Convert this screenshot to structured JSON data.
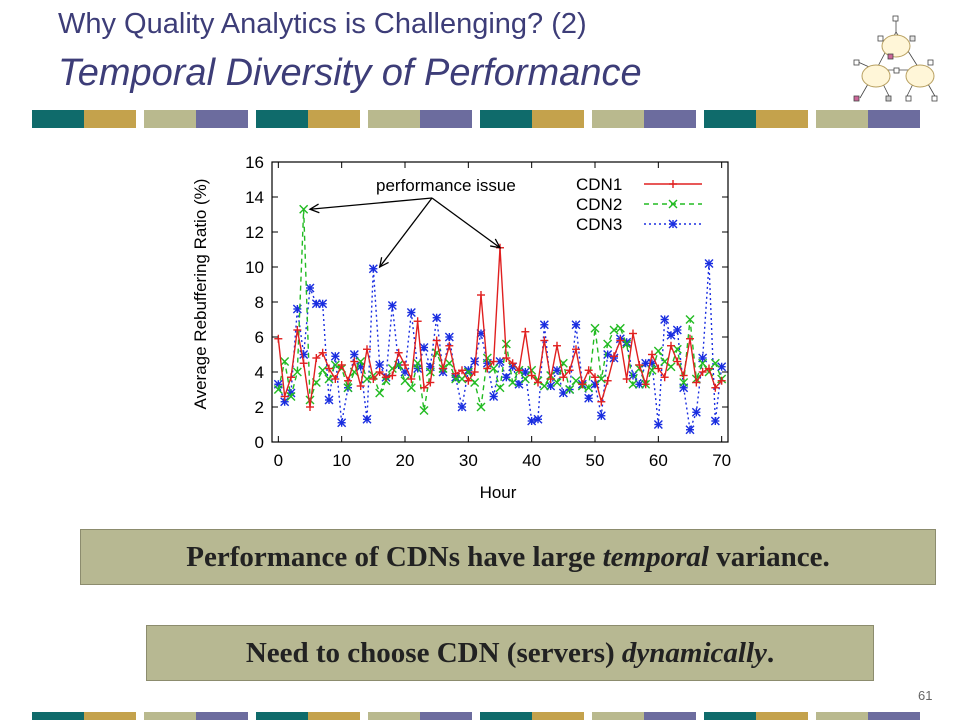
{
  "slide": {
    "title_line1": "Why Quality Analytics is Challenging? (2)",
    "title_line2": "Temporal Diversity of Performance",
    "page_number": "61",
    "stripe_colors": [
      "#0f6b6b",
      "#c4a24c",
      "#b9b98e",
      "#6c6c9e"
    ],
    "callout1": {
      "before": "Performance of CDNs have large ",
      "emph": "temporal",
      "after": " variance."
    },
    "callout2": {
      "before": "Need to choose CDN (servers) ",
      "emph": "dynamically",
      "after": "."
    }
  },
  "chart_data": {
    "type": "line",
    "xlabel": "Hour",
    "ylabel": "Average Rebuffering Ratio (%)",
    "xlim": [
      -1,
      71
    ],
    "ylim": [
      0,
      16
    ],
    "xticks": [
      0,
      10,
      20,
      30,
      40,
      50,
      60,
      70
    ],
    "yticks": [
      0,
      2,
      4,
      6,
      8,
      10,
      12,
      14,
      16
    ],
    "annotation": "performance issue",
    "legend_position": "top-right",
    "series": [
      {
        "name": "CDN1",
        "color": "#e02020",
        "dash": "solid",
        "marker": "+",
        "x": [
          0,
          1,
          2,
          3,
          4,
          5,
          6,
          7,
          8,
          9,
          10,
          11,
          12,
          13,
          14,
          15,
          16,
          17,
          18,
          19,
          20,
          21,
          22,
          23,
          24,
          25,
          26,
          27,
          28,
          29,
          30,
          31,
          32,
          33,
          34,
          35,
          36,
          37,
          38,
          39,
          40,
          41,
          42,
          43,
          44,
          45,
          46,
          47,
          48,
          49,
          50,
          51,
          52,
          53,
          54,
          55,
          56,
          57,
          58,
          59,
          60,
          61,
          62,
          63,
          64,
          65,
          66,
          67,
          68,
          69,
          70
        ],
        "values": [
          5.9,
          2.6,
          3.7,
          6.4,
          4.5,
          2.0,
          4.8,
          5.1,
          4.2,
          3.6,
          4.4,
          3.5,
          4.6,
          3.2,
          5.3,
          3.6,
          4.0,
          3.7,
          3.8,
          5.1,
          4.4,
          3.6,
          6.9,
          3.1,
          3.4,
          5.8,
          4.2,
          5.5,
          3.9,
          4.1,
          3.5,
          4.0,
          8.4,
          4.2,
          4.6,
          11.1,
          4.8,
          4.5,
          4.1,
          6.3,
          3.8,
          3.4,
          5.8,
          3.6,
          5.5,
          3.7,
          4.1,
          5.3,
          3.3,
          4.1,
          3.7,
          2.3,
          3.5,
          4.9,
          5.8,
          3.6,
          6.2,
          4.4,
          3.3,
          5.0,
          4.2,
          3.7,
          5.5,
          4.6,
          3.8,
          5.9,
          3.4,
          4.0,
          4.2,
          3.1,
          3.5
        ]
      },
      {
        "name": "CDN2",
        "color": "#22bb22",
        "dash": "5,4",
        "marker": "x",
        "x": [
          0,
          1,
          2,
          3,
          4,
          5,
          6,
          7,
          8,
          9,
          10,
          11,
          12,
          13,
          14,
          15,
          16,
          17,
          18,
          19,
          20,
          21,
          22,
          23,
          24,
          25,
          26,
          27,
          28,
          29,
          30,
          31,
          32,
          33,
          34,
          35,
          36,
          37,
          38,
          39,
          40,
          41,
          42,
          43,
          44,
          45,
          46,
          47,
          48,
          49,
          50,
          51,
          52,
          53,
          54,
          55,
          56,
          57,
          58,
          59,
          60,
          61,
          62,
          63,
          64,
          65,
          66,
          67,
          68,
          69,
          70
        ],
        "values": [
          3.0,
          4.6,
          2.6,
          4.0,
          13.3,
          2.4,
          3.4,
          4.1,
          3.6,
          4.4,
          4.2,
          3.1,
          4.0,
          4.6,
          3.6,
          3.8,
          2.8,
          3.5,
          4.2,
          4.4,
          3.5,
          3.1,
          4.5,
          1.8,
          4.0,
          5.1,
          4.2,
          4.5,
          3.6,
          3.6,
          4.0,
          3.4,
          2.0,
          4.8,
          4.2,
          3.1,
          5.6,
          3.4,
          4.1,
          3.6,
          4.1,
          3.5,
          3.2,
          3.8,
          3.4,
          4.5,
          3.0,
          3.5,
          3.2,
          3.1,
          6.5,
          3.6,
          5.6,
          6.4,
          6.5,
          5.6,
          3.3,
          4.2,
          3.3,
          4.1,
          5.2,
          4.6,
          4.3,
          5.3,
          3.4,
          7.0,
          3.6,
          4.5,
          4.0,
          4.5,
          3.6
        ]
      },
      {
        "name": "CDN3",
        "color": "#1a2ee0",
        "dash": "2,3",
        "marker": "*",
        "x": [
          0,
          1,
          2,
          3,
          4,
          5,
          6,
          7,
          8,
          9,
          10,
          11,
          12,
          13,
          14,
          15,
          16,
          17,
          18,
          19,
          20,
          21,
          22,
          23,
          24,
          25,
          26,
          27,
          28,
          29,
          30,
          31,
          32,
          33,
          34,
          35,
          36,
          37,
          38,
          39,
          40,
          41,
          42,
          43,
          44,
          45,
          46,
          47,
          48,
          49,
          50,
          51,
          52,
          53,
          54,
          55,
          56,
          57,
          58,
          59,
          60,
          61,
          62,
          63,
          64,
          65,
          66,
          67,
          68,
          69,
          70
        ],
        "values": [
          3.3,
          2.3,
          2.8,
          7.6,
          5.0,
          8.8,
          7.9,
          7.9,
          2.4,
          4.9,
          1.1,
          3.1,
          5.0,
          4.3,
          1.3,
          9.9,
          4.4,
          3.7,
          7.8,
          4.4,
          4.0,
          7.4,
          4.2,
          5.4,
          4.3,
          7.1,
          4.0,
          6.0,
          3.7,
          2.0,
          4.1,
          4.6,
          6.2,
          4.5,
          2.6,
          4.6,
          3.7,
          4.3,
          3.3,
          4.0,
          1.2,
          1.3,
          6.7,
          3.2,
          4.1,
          2.8,
          3.0,
          6.7,
          3.3,
          2.5,
          3.3,
          1.5,
          5.0,
          4.8,
          5.9,
          5.7,
          3.8,
          3.3,
          4.5,
          4.5,
          1.0,
          7.0,
          6.1,
          6.4,
          3.1,
          0.7,
          1.7,
          4.8,
          10.2,
          1.2,
          4.3
        ]
      }
    ]
  }
}
